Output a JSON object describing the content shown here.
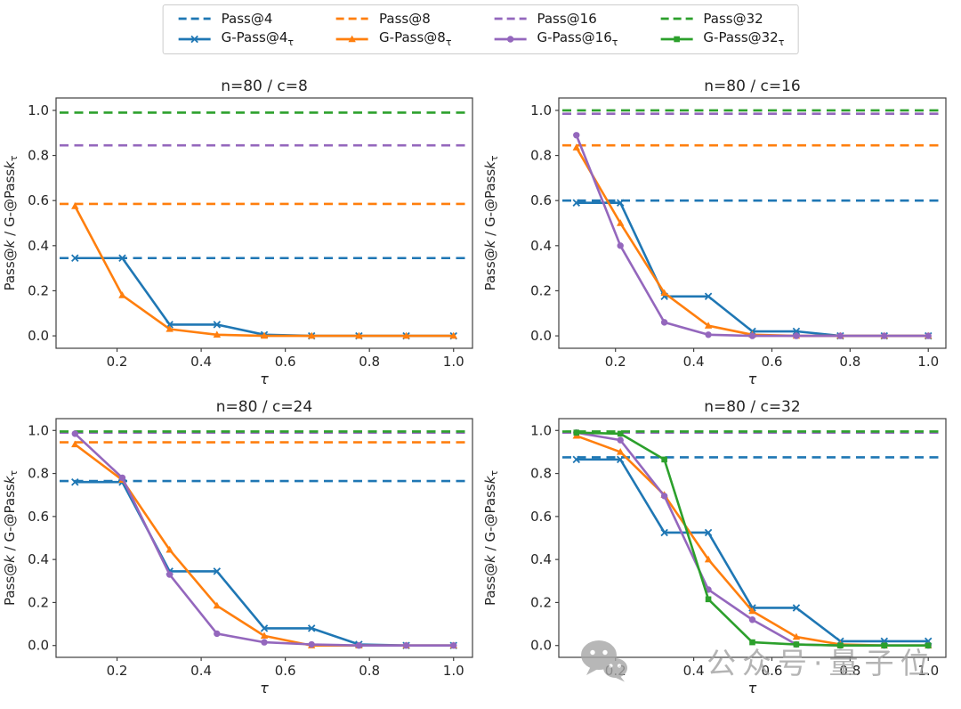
{
  "colors": {
    "blue": "#1f77b4",
    "orange": "#ff7f0e",
    "purple": "#9467bd",
    "green": "#2ca02c"
  },
  "legend": {
    "position": "top-center",
    "entries": [
      {
        "label": "Pass@4",
        "sub": "",
        "color": "#1f77b4",
        "dash": true,
        "marker": ""
      },
      {
        "label": "Pass@8",
        "sub": "",
        "color": "#ff7f0e",
        "dash": true,
        "marker": ""
      },
      {
        "label": "Pass@16",
        "sub": "",
        "color": "#9467bd",
        "dash": true,
        "marker": ""
      },
      {
        "label": "Pass@32",
        "sub": "",
        "color": "#2ca02c",
        "dash": true,
        "marker": ""
      },
      {
        "label": "G-Pass@4",
        "sub": "τ",
        "color": "#1f77b4",
        "dash": false,
        "marker": "x"
      },
      {
        "label": "G-Pass@8",
        "sub": "τ",
        "color": "#ff7f0e",
        "dash": false,
        "marker": "triangle"
      },
      {
        "label": "G-Pass@16",
        "sub": "τ",
        "color": "#9467bd",
        "dash": false,
        "marker": "circle"
      },
      {
        "label": "G-Pass@32",
        "sub": "τ",
        "color": "#2ca02c",
        "dash": false,
        "marker": "square"
      }
    ]
  },
  "axis_style": {
    "xlabel": "τ",
    "ylabel": "Pass@k / G-@Passkτ",
    "ylabel_parts": [
      {
        "t": "Pass@"
      },
      {
        "t": "k",
        "italic": true
      },
      {
        "t": " / G-@Pass"
      },
      {
        "t": "k",
        "italic": true
      },
      {
        "t": "τ",
        "sub": true
      }
    ]
  },
  "chart_data": [
    {
      "type": "line",
      "title": "n=80 / c=8",
      "xlabel": "τ",
      "ylabel": "Pass@k / G-@Passkτ",
      "xlim": [
        0.055,
        1.045
      ],
      "ylim": [
        -0.055,
        1.055
      ],
      "grid": false,
      "xticks": [
        "0.2",
        "0.4",
        "0.6",
        "0.8",
        "1.0"
      ],
      "yticks": [
        "0.0",
        "0.2",
        "0.4",
        "0.6",
        "0.8",
        "1.0"
      ],
      "x": [
        0.1,
        0.2125,
        0.325,
        0.4375,
        0.55,
        0.6625,
        0.775,
        0.8875,
        1.0
      ],
      "hlines": [
        {
          "name": "Pass@4",
          "value": 0.345,
          "color": "#1f77b4"
        },
        {
          "name": "Pass@8",
          "value": 0.585,
          "color": "#ff7f0e"
        },
        {
          "name": "Pass@16",
          "value": 0.845,
          "color": "#9467bd"
        },
        {
          "name": "Pass@32",
          "value": 0.99,
          "color": "#2ca02c"
        }
      ],
      "series": [
        {
          "name": "G-Pass@4τ",
          "color": "#1f77b4",
          "marker": "x",
          "values": [
            0.345,
            0.345,
            0.05,
            0.05,
            0.005,
            0.0,
            0.0,
            0.0,
            0.0
          ]
        },
        {
          "name": "G-Pass@8τ",
          "color": "#ff7f0e",
          "marker": "triangle",
          "values": [
            0.575,
            0.18,
            0.03,
            0.005,
            0.0,
            0.0,
            0.0,
            0.0,
            0.0
          ]
        }
      ]
    },
    {
      "type": "line",
      "title": "n=80 / c=16",
      "xlabel": "τ",
      "ylabel": "Pass@k / G-@Passkτ",
      "xlim": [
        0.055,
        1.045
      ],
      "ylim": [
        -0.055,
        1.055
      ],
      "grid": false,
      "xticks": [
        "0.2",
        "0.4",
        "0.6",
        "0.8",
        "1.0"
      ],
      "yticks": [
        "0.0",
        "0.2",
        "0.4",
        "0.6",
        "0.8",
        "1.0"
      ],
      "x": [
        0.1,
        0.2125,
        0.325,
        0.4375,
        0.55,
        0.6625,
        0.775,
        0.8875,
        1.0
      ],
      "hlines": [
        {
          "name": "Pass@4",
          "value": 0.6,
          "color": "#1f77b4"
        },
        {
          "name": "Pass@8",
          "value": 0.845,
          "color": "#ff7f0e"
        },
        {
          "name": "Pass@16",
          "value": 0.985,
          "color": "#9467bd"
        },
        {
          "name": "Pass@32",
          "value": 1.0,
          "color": "#2ca02c"
        }
      ],
      "series": [
        {
          "name": "G-Pass@4τ",
          "color": "#1f77b4",
          "marker": "x",
          "values": [
            0.59,
            0.59,
            0.175,
            0.175,
            0.02,
            0.02,
            0.0,
            0.0,
            0.0
          ]
        },
        {
          "name": "G-Pass@8τ",
          "color": "#ff7f0e",
          "marker": "triangle",
          "values": [
            0.835,
            0.5,
            0.19,
            0.045,
            0.005,
            0.0,
            0.0,
            0.0,
            0.0
          ]
        },
        {
          "name": "G-Pass@16τ",
          "color": "#9467bd",
          "marker": "circle",
          "values": [
            0.89,
            0.4,
            0.06,
            0.005,
            0.0,
            0.0,
            0.0,
            0.0,
            0.0
          ]
        }
      ]
    },
    {
      "type": "line",
      "title": "n=80 / c=24",
      "xlabel": "τ",
      "ylabel": "Pass@k / G-@Passkτ",
      "xlim": [
        0.055,
        1.045
      ],
      "ylim": [
        -0.055,
        1.055
      ],
      "grid": false,
      "xticks": [
        "0.2",
        "0.4",
        "0.6",
        "0.8",
        "1.0"
      ],
      "yticks": [
        "0.0",
        "0.2",
        "0.4",
        "0.6",
        "0.8",
        "1.0"
      ],
      "x": [
        0.1,
        0.2125,
        0.325,
        0.4375,
        0.55,
        0.6625,
        0.775,
        0.8875,
        1.0
      ],
      "hlines": [
        {
          "name": "Pass@4",
          "value": 0.765,
          "color": "#1f77b4"
        },
        {
          "name": "Pass@8",
          "value": 0.945,
          "color": "#ff7f0e"
        },
        {
          "name": "Pass@16",
          "value": 0.99,
          "color": "#9467bd"
        },
        {
          "name": "Pass@32",
          "value": 0.995,
          "color": "#2ca02c"
        }
      ],
      "series": [
        {
          "name": "G-Pass@4τ",
          "color": "#1f77b4",
          "marker": "x",
          "values": [
            0.76,
            0.76,
            0.345,
            0.345,
            0.08,
            0.08,
            0.005,
            0.0,
            0.0
          ]
        },
        {
          "name": "G-Pass@8τ",
          "color": "#ff7f0e",
          "marker": "triangle",
          "values": [
            0.935,
            0.77,
            0.445,
            0.185,
            0.045,
            0.0,
            0.0,
            0.0,
            0.0
          ]
        },
        {
          "name": "G-Pass@16τ",
          "color": "#9467bd",
          "marker": "circle",
          "values": [
            0.985,
            0.78,
            0.33,
            0.055,
            0.015,
            0.005,
            0.0,
            0.0,
            0.0
          ]
        }
      ]
    },
    {
      "type": "line",
      "title": "n=80 / c=32",
      "xlabel": "τ",
      "ylabel": "Pass@k / G-@Passkτ",
      "xlim": [
        0.055,
        1.045
      ],
      "ylim": [
        -0.055,
        1.055
      ],
      "grid": false,
      "xticks": [
        "0.2",
        "0.4",
        "0.6",
        "0.8",
        "1.0"
      ],
      "yticks": [
        "0.0",
        "0.2",
        "0.4",
        "0.6",
        "0.8",
        "1.0"
      ],
      "x": [
        0.1,
        0.2125,
        0.325,
        0.4375,
        0.55,
        0.6625,
        0.775,
        0.8875,
        1.0
      ],
      "hlines": [
        {
          "name": "Pass@4",
          "value": 0.875,
          "color": "#1f77b4"
        },
        {
          "name": "Pass@8",
          "value": 0.99,
          "color": "#ff7f0e"
        },
        {
          "name": "Pass@16",
          "value": 0.99,
          "color": "#9467bd"
        },
        {
          "name": "Pass@32",
          "value": 0.995,
          "color": "#2ca02c"
        }
      ],
      "series": [
        {
          "name": "G-Pass@4τ",
          "color": "#1f77b4",
          "marker": "x",
          "values": [
            0.865,
            0.865,
            0.525,
            0.525,
            0.175,
            0.175,
            0.02,
            0.02,
            0.02
          ]
        },
        {
          "name": "G-Pass@8τ",
          "color": "#ff7f0e",
          "marker": "triangle",
          "values": [
            0.975,
            0.9,
            0.7,
            0.4,
            0.16,
            0.04,
            0.005,
            0.0,
            0.0
          ]
        },
        {
          "name": "G-Pass@16τ",
          "color": "#9467bd",
          "marker": "circle",
          "values": [
            0.99,
            0.955,
            0.695,
            0.26,
            0.12,
            0.005,
            0.0,
            0.0,
            0.0
          ]
        },
        {
          "name": "G-Pass@32τ",
          "color": "#2ca02c",
          "marker": "square",
          "values": [
            0.99,
            0.985,
            0.865,
            0.215,
            0.015,
            0.005,
            0.0,
            0.0,
            0.0
          ]
        }
      ]
    }
  ],
  "watermark": {
    "icon": "wechat-icon",
    "text": "公众号·量子位"
  }
}
